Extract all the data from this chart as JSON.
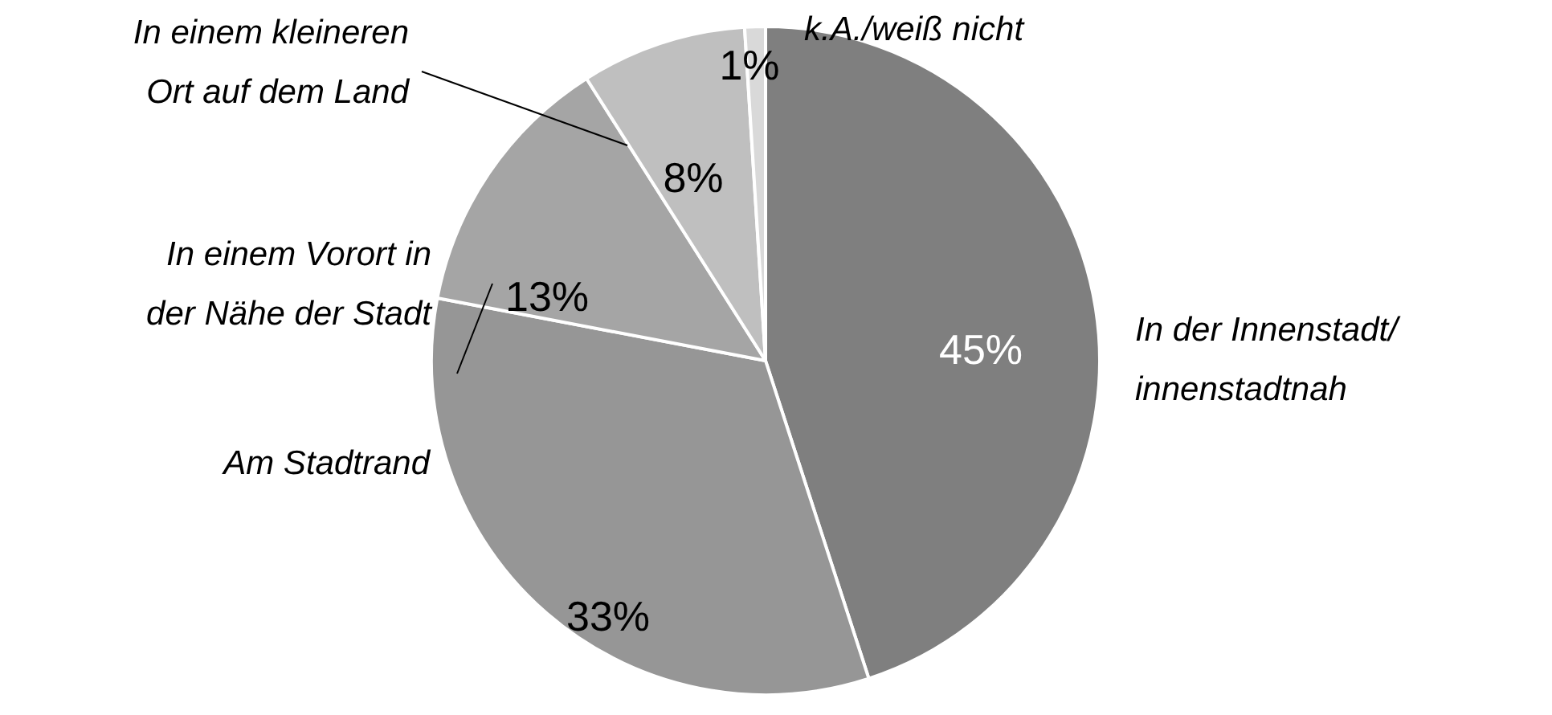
{
  "chart_data": {
    "type": "pie",
    "categories": [
      "In der Innenstadt/\ninnenstadtnah",
      "Am Stadtrand",
      "In einem Vorort in\nder Nähe der Stadt",
      "In einem kleineren\nOrt auf dem Land",
      "k.A./weiß nicht"
    ],
    "values": [
      45,
      33,
      13,
      8,
      1
    ],
    "colors": [
      "#7f7f7f",
      "#969696",
      "#a5a5a5",
      "#bfbfbf",
      "#d9d9d9"
    ],
    "value_labels": [
      "45%",
      "33%",
      "13%",
      "8%",
      "1%"
    ]
  }
}
